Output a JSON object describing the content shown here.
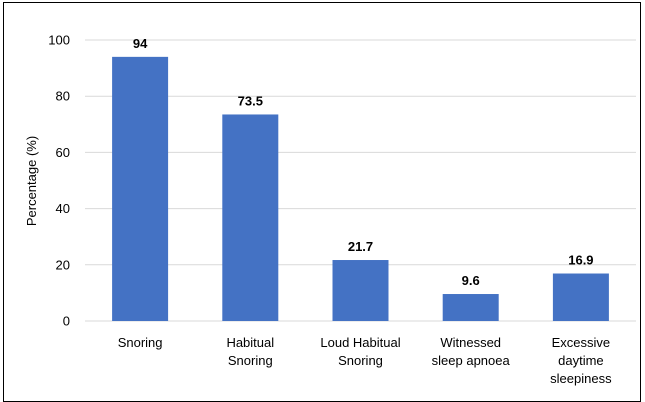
{
  "chart_data": {
    "type": "bar",
    "title": "",
    "xlabel": "",
    "ylabel": "Percentage (%)",
    "ylim": [
      0,
      100
    ],
    "yticks": [
      0,
      20,
      40,
      60,
      80,
      100
    ],
    "grid": true,
    "legend": "none",
    "bar_color": "#4472c4",
    "categories": [
      [
        "Snoring"
      ],
      [
        "Habitual",
        "Snoring"
      ],
      [
        "Loud Habitual",
        "Snoring"
      ],
      [
        "Witnessed",
        "sleep apnoea"
      ],
      [
        "Excessive",
        "daytime",
        "sleepiness"
      ]
    ],
    "values": [
      94,
      73.5,
      21.7,
      9.6,
      16.9
    ],
    "data_labels": [
      "94",
      "73.5",
      "21.7",
      "9.6",
      "16.9"
    ]
  }
}
